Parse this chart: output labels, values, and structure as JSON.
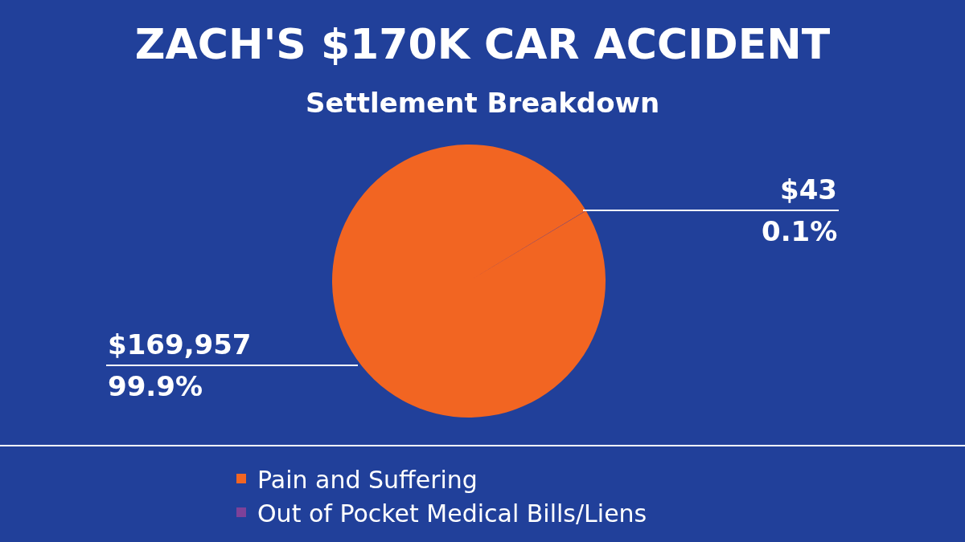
{
  "chart_data": {
    "type": "pie",
    "title": "ZACH'S $170K CAR ACCIDENT",
    "subtitle": "Settlement Breakdown",
    "categories": [
      "Pain and Suffering",
      "Out of Pocket Medical Bills/Liens"
    ],
    "values": [
      169957,
      43
    ],
    "colors": [
      "#f26522",
      "#7d4199"
    ],
    "value_labels": [
      "$169,957\n99.9%",
      "$43\n0.1%"
    ],
    "legend": "bottom"
  }
}
